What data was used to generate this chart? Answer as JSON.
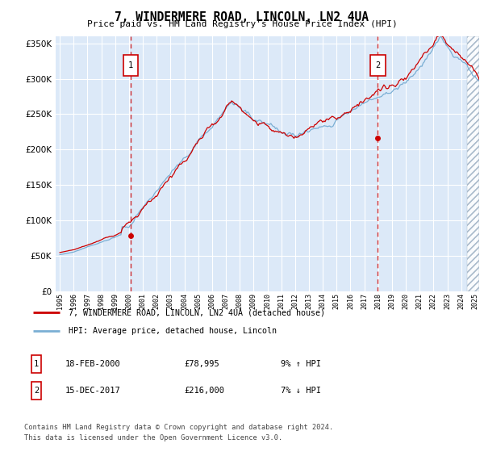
{
  "title": "7, WINDERMERE ROAD, LINCOLN, LN2 4UA",
  "subtitle": "Price paid vs. HM Land Registry's House Price Index (HPI)",
  "legend_line1": "7, WINDERMERE ROAD, LINCOLN, LN2 4UA (detached house)",
  "legend_line2": "HPI: Average price, detached house, Lincoln",
  "footer1": "Contains HM Land Registry data © Crown copyright and database right 2024.",
  "footer2": "This data is licensed under the Open Government Licence v3.0.",
  "sale1_label": "18-FEB-2000",
  "sale1_price": "£78,995",
  "sale1_hpi": "9% ↑ HPI",
  "sale2_label": "15-DEC-2017",
  "sale2_price": "£216,000",
  "sale2_hpi": "7% ↓ HPI",
  "sale1_year": 2000.12,
  "sale1_value": 78995,
  "sale2_year": 2017.96,
  "sale2_value": 216000,
  "hatch_start_year": 2024.42,
  "bg_color": "#dce9f8",
  "line_color_red": "#cc0000",
  "line_color_blue": "#7bafd4",
  "vline_color": "#cc0000",
  "ylim_min": 0,
  "ylim_max": 360000,
  "xlim_min": 1994.7,
  "xlim_max": 2025.3
}
